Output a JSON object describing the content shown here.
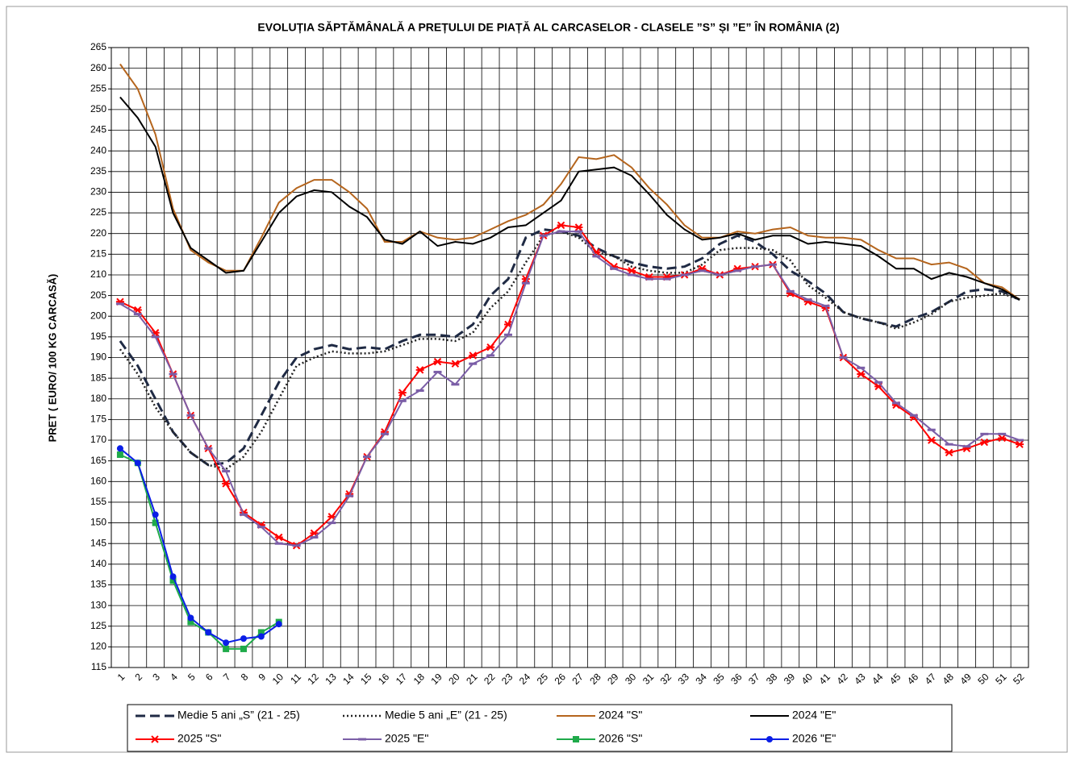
{
  "chart_data": {
    "type": "line",
    "title": "EVOLUȚIA  SĂPTĂMÂNALĂ  A PREȚULUI  DE PIAȚĂ  AL CARCASELOR   - CLASELE  ”S” ȘI ”E”  ÎN ROMÂNIA (2)",
    "y_label": "PRET ( EURO/ 100 KG CARCASĂ)",
    "categories": [
      "1",
      "2",
      "3",
      "4",
      "5",
      "6",
      "7",
      "8",
      "9",
      "10",
      "11",
      "12",
      "13",
      "14",
      "15",
      "16",
      "17",
      "18",
      "19",
      "20",
      "21",
      "22",
      "23",
      "24",
      "25",
      "26",
      "27",
      "28",
      "29",
      "30",
      "31",
      "32",
      "33",
      "34",
      "35",
      "36",
      "37",
      "38",
      "39",
      "40",
      "41",
      "42",
      "43",
      "44",
      "45",
      "46",
      "47",
      "48",
      "49",
      "50",
      "51",
      "52"
    ],
    "ylim": [
      115,
      265
    ],
    "yticks": [
      115,
      120,
      125,
      130,
      135,
      140,
      145,
      150,
      155,
      160,
      165,
      170,
      175,
      180,
      185,
      190,
      195,
      200,
      205,
      210,
      215,
      220,
      225,
      230,
      235,
      240,
      245,
      250,
      255,
      260,
      265
    ],
    "grid": true,
    "series": [
      {
        "name": "Medie 5 ani „S” (21 - 25)",
        "color": "#1f2a44",
        "dash": "dashed",
        "marker": "none",
        "values": [
          194,
          188,
          180,
          172,
          167,
          164,
          164.5,
          168,
          176,
          184,
          190,
          192,
          193,
          192,
          192.5,
          192,
          194,
          195.5,
          195.5,
          195,
          198,
          205,
          209,
          219,
          221,
          220.5,
          219.5,
          216.5,
          214.5,
          213,
          212,
          211.5,
          212,
          214,
          217.5,
          219.5,
          218,
          215,
          211,
          208.5,
          205.5,
          201,
          199.5,
          198.5,
          197.5,
          199.5,
          201,
          203.5,
          206,
          206.5,
          206,
          204
        ]
      },
      {
        "name": "Medie 5 ani „E” (21 - 25)",
        "color": "#222222",
        "dash": "dotted",
        "marker": "none",
        "values": [
          192,
          186,
          178,
          172,
          167,
          164,
          163,
          166,
          172,
          180,
          188,
          190,
          191.5,
          191,
          191,
          191.5,
          193,
          194.5,
          194.5,
          194,
          196,
          202,
          206,
          213,
          219.5,
          220.5,
          219,
          215.5,
          214.5,
          212,
          211,
          210.5,
          210.5,
          212.5,
          216,
          216.5,
          216.5,
          216,
          213.5,
          207.5,
          204.5,
          201,
          199.5,
          198.5,
          197,
          198.5,
          200.5,
          203.5,
          204.5,
          205,
          205.5,
          204
        ]
      },
      {
        "name": "2024 \"S\"",
        "color": "#b5651d",
        "dash": "solid",
        "marker": "none",
        "values": [
          261,
          255,
          244,
          226,
          216,
          213,
          211,
          211,
          219,
          227.5,
          231,
          233,
          233,
          230,
          226,
          218,
          218,
          220.5,
          219,
          218.5,
          219,
          221,
          223,
          224.5,
          227,
          232,
          238.5,
          238,
          239,
          236,
          231,
          227,
          222,
          219,
          219,
          220.5,
          220,
          221,
          221.5,
          219.5,
          219,
          219,
          218.5,
          216,
          214,
          214,
          212.5,
          213,
          211.5,
          208,
          207,
          204
        ]
      },
      {
        "name": "2024 \"E\"",
        "color": "#000000",
        "dash": "solid",
        "marker": "none",
        "values": [
          253,
          248,
          241,
          225,
          216.5,
          213.5,
          210.5,
          211,
          218,
          225,
          229,
          230.5,
          230,
          226.5,
          224,
          218.5,
          217.5,
          220.5,
          217,
          218,
          217.5,
          219,
          221.5,
          222,
          225,
          228,
          235,
          235.5,
          236,
          234,
          229.5,
          224.5,
          221,
          218.5,
          219,
          220,
          218.5,
          219.5,
          219.5,
          217.5,
          218,
          217.5,
          217,
          214.5,
          211.5,
          211.5,
          209,
          210.5,
          209.5,
          208,
          206.5,
          204
        ]
      },
      {
        "name": "2025 \"S\"",
        "color": "#ff0000",
        "dash": "solid",
        "marker": "star",
        "values": [
          203.5,
          201.5,
          196,
          186,
          176,
          168,
          159.5,
          152.5,
          149.5,
          146.5,
          144.5,
          147.5,
          151.5,
          157,
          166,
          172,
          181.5,
          187,
          189,
          188.5,
          190.5,
          192.5,
          198,
          209,
          219.5,
          222,
          221.5,
          215.5,
          212,
          211,
          209.5,
          209.5,
          210,
          211.5,
          210,
          211.5,
          212,
          212.5,
          205.5,
          203.5,
          202,
          190,
          186,
          183,
          178.5,
          175.5,
          170,
          167,
          168,
          169.5,
          170.5,
          169
        ]
      },
      {
        "name": "2025 \"E\"",
        "color": "#7b5ea7",
        "dash": "solid",
        "marker": "dash",
        "values": [
          203,
          200.5,
          195,
          186,
          176,
          168,
          162.5,
          152,
          149,
          145,
          144.5,
          146.5,
          150,
          156.5,
          166,
          171.5,
          179.5,
          182,
          186.5,
          183.5,
          188.5,
          190.5,
          195.5,
          208,
          219.5,
          220.5,
          220.5,
          214.5,
          211.5,
          210,
          209,
          209,
          210,
          211,
          210,
          211,
          212,
          212.5,
          206,
          204,
          202.5,
          190,
          187.5,
          184,
          179,
          176,
          172.5,
          169,
          168.5,
          171.5,
          171.5,
          170
        ]
      },
      {
        "name": "2026 \"S\"",
        "color": "#1faa4a",
        "dash": "solid",
        "marker": "square",
        "values": [
          166.5,
          164.5,
          150,
          136,
          126,
          123.5,
          119.5,
          119.5,
          123.5,
          126,
          null,
          null,
          null,
          null,
          null,
          null,
          null,
          null,
          null,
          null,
          null,
          null,
          null,
          null,
          null,
          null,
          null,
          null,
          null,
          null,
          null,
          null,
          null,
          null,
          null,
          null,
          null,
          null,
          null,
          null,
          null,
          null,
          null,
          null,
          null,
          null,
          null,
          null,
          null,
          null,
          null,
          null
        ]
      },
      {
        "name": "2026 \"E\"",
        "color": "#0a1ee6",
        "dash": "solid",
        "marker": "circle",
        "values": [
          168,
          164.5,
          152,
          137,
          127,
          123.5,
          121,
          122,
          122.5,
          125.5,
          null,
          null,
          null,
          null,
          null,
          null,
          null,
          null,
          null,
          null,
          null,
          null,
          null,
          null,
          null,
          null,
          null,
          null,
          null,
          null,
          null,
          null,
          null,
          null,
          null,
          null,
          null,
          null,
          null,
          null,
          null,
          null,
          null,
          null,
          null,
          null,
          null,
          null,
          null,
          null,
          null,
          null
        ]
      }
    ]
  }
}
